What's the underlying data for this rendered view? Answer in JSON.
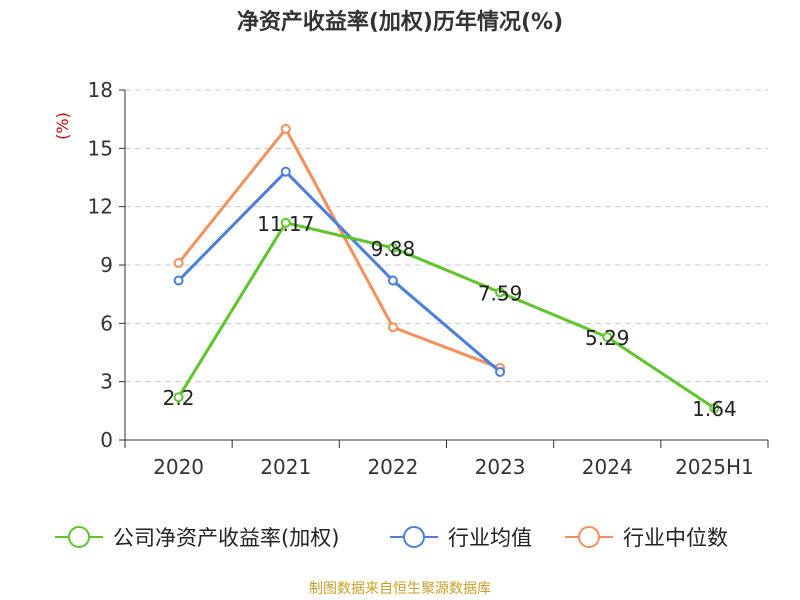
{
  "chart_data": {
    "type": "line",
    "title": "净资产收益率(加权)历年情况(%)",
    "ylabel": "(%)",
    "categories": [
      "2020",
      "2021",
      "2022",
      "2023",
      "2024",
      "2025H1"
    ],
    "ylim": [
      0,
      18
    ],
    "yticks": [
      0,
      3,
      6,
      9,
      12,
      15,
      18
    ],
    "grid": true,
    "legend_position": "bottom",
    "series": [
      {
        "name": "公司净资产收益率(加权)",
        "color": "#5cc62a",
        "values": [
          2.2,
          11.17,
          9.88,
          7.59,
          5.29,
          1.64
        ],
        "labels": [
          "2.2",
          "11.17",
          "9.88",
          "7.59",
          "5.29",
          "1.64"
        ]
      },
      {
        "name": "行业均值",
        "color": "#4a7fdc",
        "values": [
          8.2,
          13.8,
          8.2,
          3.5,
          null,
          null
        ]
      },
      {
        "name": "行业中位数",
        "color": "#f5905a",
        "values": [
          9.1,
          16.0,
          5.8,
          3.7,
          null,
          null
        ]
      }
    ]
  },
  "source": "制图数据来自恒生聚源数据库",
  "colors": {
    "axis": "#333333",
    "grid": "#cccccc",
    "ylabel": "#cc0000",
    "source": "#c8a028"
  }
}
